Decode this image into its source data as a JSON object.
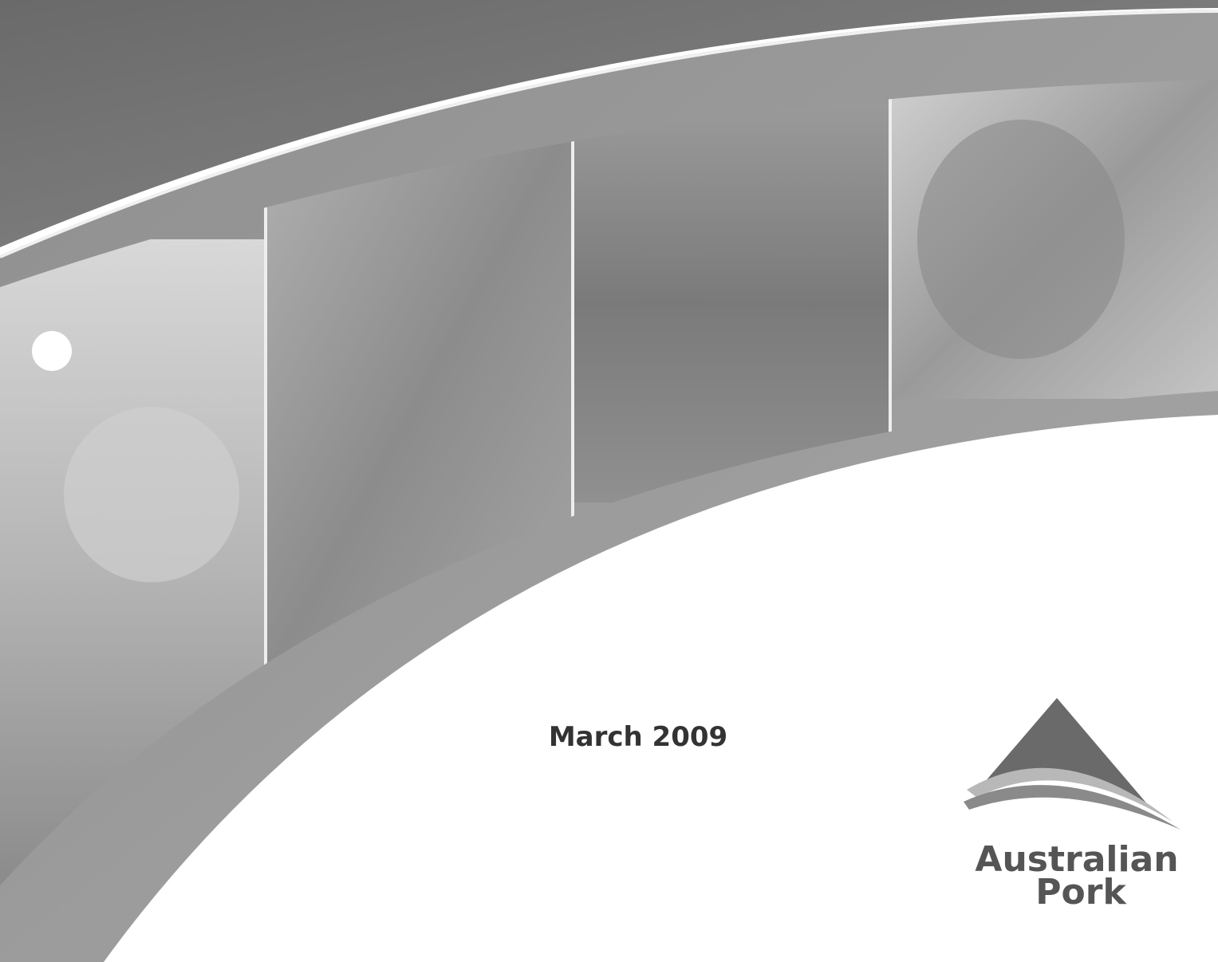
{
  "document": {
    "date": "March 2009",
    "logo": {
      "line1": "Australian",
      "line2": "Pork"
    }
  }
}
